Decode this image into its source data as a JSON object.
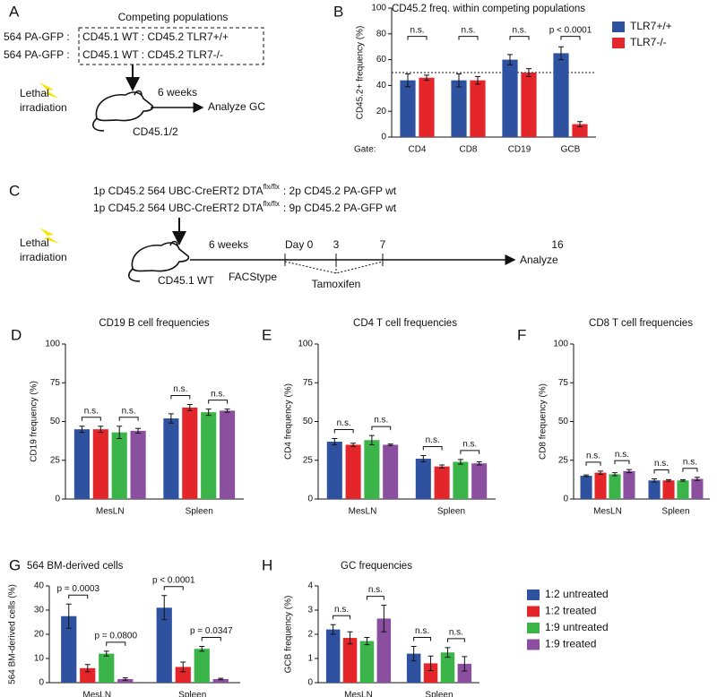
{
  "panels": {
    "A": {
      "letter": "A",
      "header": "Competing populations",
      "rows": [
        [
          "564 PA-GFP :",
          "CD45.1 WT : CD45.2 TLR7+/+"
        ],
        [
          "564 PA-GFP :",
          "CD45.1 WT : CD45.2 TLR7-/-"
        ]
      ],
      "treatment": [
        "Lethal",
        "irradiation"
      ],
      "interval": "6 weeks",
      "readout": "Analyze GC",
      "host": "CD45.1/2"
    },
    "C": {
      "letter": "C",
      "rows": [
        {
          "donor": "1p CD45.2 564 UBC-CreERT2 DTA",
          "superscript": "flx/flx",
          "mix": ": 2p CD45.2 PA-GFP wt"
        },
        {
          "donor": "1p CD45.2 564 UBC-CreERT2 DTA",
          "superscript": "flx/flx",
          "mix": ": 9p CD45.2 PA-GFP wt"
        }
      ],
      "treatment": [
        "Lethal",
        "irradiation"
      ],
      "host": "CD45.1 WT",
      "interval": "6 weeks",
      "timepoints": [
        "Day 0",
        "3",
        "7",
        "16"
      ],
      "readout": "Analyze",
      "screen": "FACStype",
      "drug": "Tamoxifen"
    }
  },
  "chart_data": [
    {
      "type": "bar",
      "panel_label": "B",
      "title": "CD45.2 freq. within competing populations",
      "y_label": "CD45.2+ frequency (%)",
      "x_label": "Gate:",
      "categories": [
        "CD4",
        "CD8",
        "CD19",
        "GCB"
      ],
      "series": [
        {
          "name": "TLR7+/+",
          "color": "#2f52a0",
          "values": [
            44,
            44,
            60,
            65
          ],
          "errors": [
            5,
            5,
            4,
            5
          ]
        },
        {
          "name": "TLR7-/-",
          "color": "#e4262b",
          "values": [
            46,
            44,
            50,
            10
          ],
          "errors": [
            2,
            3,
            3,
            2
          ]
        }
      ],
      "ylim": [
        0,
        100
      ],
      "yticks": [
        0,
        20,
        40,
        60,
        80,
        100
      ],
      "reference_line": 50,
      "annotations": [
        "n.s.",
        "n.s.",
        "n.s.",
        "p < 0.0001"
      ]
    },
    {
      "type": "bar",
      "panel_label": "D",
      "title": "CD19 B cell frequencies",
      "y_label": "CD19 frequency (%)",
      "categories": [
        "MesLN",
        "Spleen"
      ],
      "series": [
        {
          "name": "1:2 untreated",
          "color": "#2f52a0",
          "values": [
            45,
            52
          ],
          "errors": [
            2,
            3
          ]
        },
        {
          "name": "1:2 treated",
          "color": "#e4262b",
          "values": [
            45,
            59
          ],
          "errors": [
            2,
            2
          ]
        },
        {
          "name": "1:9 untreated",
          "color": "#3bb54a",
          "values": [
            43,
            56
          ],
          "errors": [
            4,
            2
          ]
        },
        {
          "name": "1:9 treated",
          "color": "#8b4f9f",
          "values": [
            44,
            57
          ],
          "errors": [
            1.5,
            1
          ]
        }
      ],
      "ylim": [
        0,
        100
      ],
      "yticks": [
        0,
        25,
        50,
        75,
        100
      ],
      "annotations": [
        "n.s.",
        "n.s.",
        "n.s.",
        "n.s."
      ]
    },
    {
      "type": "bar",
      "panel_label": "E",
      "title": "CD4 T cell frequencies",
      "y_label": "CD4 frequency (%)",
      "categories": [
        "MesLN",
        "Spleen"
      ],
      "series": [
        {
          "name": "1:2 untreated",
          "color": "#2f52a0",
          "values": [
            37,
            26
          ],
          "errors": [
            2,
            2
          ]
        },
        {
          "name": "1:2 treated",
          "color": "#e4262b",
          "values": [
            35,
            21
          ],
          "errors": [
            1,
            1
          ]
        },
        {
          "name": "1:9 untreated",
          "color": "#3bb54a",
          "values": [
            38,
            24
          ],
          "errors": [
            3,
            1.5
          ]
        },
        {
          "name": "1:9 treated",
          "color": "#8b4f9f",
          "values": [
            35,
            23
          ],
          "errors": [
            0.5,
            1
          ]
        }
      ],
      "ylim": [
        0,
        100
      ],
      "yticks": [
        0,
        25,
        50,
        75,
        100
      ],
      "annotations": [
        "n.s.",
        "n.s.",
        "n.s.",
        "n.s."
      ]
    },
    {
      "type": "bar",
      "panel_label": "F",
      "title": "CD8 T cell frequencies",
      "y_label": "CD8 frequency (%)",
      "categories": [
        "MesLN",
        "Spleen"
      ],
      "series": [
        {
          "name": "1:2 untreated",
          "color": "#2f52a0",
          "values": [
            15,
            12
          ],
          "errors": [
            0.5,
            1
          ]
        },
        {
          "name": "1:2 treated",
          "color": "#e4262b",
          "values": [
            17,
            12
          ],
          "errors": [
            1,
            0.5
          ]
        },
        {
          "name": "1:9 untreated",
          "color": "#3bb54a",
          "values": [
            16,
            12
          ],
          "errors": [
            1,
            0.5
          ]
        },
        {
          "name": "1:9 treated",
          "color": "#8b4f9f",
          "values": [
            18,
            13
          ],
          "errors": [
            1,
            1
          ]
        }
      ],
      "ylim": [
        0,
        100
      ],
      "yticks": [
        0,
        25,
        50,
        75,
        100
      ],
      "annotations": [
        "n.s.",
        "n.s.",
        "n.s.",
        "n.s."
      ]
    },
    {
      "type": "bar",
      "panel_label": "G",
      "title": "564 BM-derived cells",
      "y_label": "564 BM-derived cells (%)",
      "categories": [
        "MesLN",
        "Spleen"
      ],
      "series": [
        {
          "name": "1:2 untreated",
          "color": "#2f52a0",
          "values": [
            27.5,
            31
          ],
          "errors": [
            5,
            5
          ]
        },
        {
          "name": "1:2 treated",
          "color": "#e4262b",
          "values": [
            6,
            6.5
          ],
          "errors": [
            1.5,
            2
          ]
        },
        {
          "name": "1:9 untreated",
          "color": "#3bb54a",
          "values": [
            12,
            14
          ],
          "errors": [
            1,
            1
          ]
        },
        {
          "name": "1:9 treated",
          "color": "#8b4f9f",
          "values": [
            1.5,
            1.5
          ],
          "errors": [
            0.5,
            0.3
          ]
        }
      ],
      "ylim": [
        0,
        40
      ],
      "yticks": [
        0,
        10,
        20,
        30,
        40
      ],
      "annotations": [
        "p = 0.0003",
        "p = 0.0800",
        "p < 0.0001",
        "p = 0.0347"
      ]
    },
    {
      "type": "bar",
      "panel_label": "H",
      "title": "GC frequencies",
      "y_label": "GCB frequency (%)",
      "categories": [
        "MesLN",
        "Spleen"
      ],
      "series": [
        {
          "name": "1:2 untreated",
          "color": "#2f52a0",
          "values": [
            2.2,
            1.2
          ],
          "errors": [
            0.2,
            0.3
          ]
        },
        {
          "name": "1:2 treated",
          "color": "#e4262b",
          "values": [
            1.85,
            0.8
          ],
          "errors": [
            0.25,
            0.3
          ]
        },
        {
          "name": "1:9 untreated",
          "color": "#3bb54a",
          "values": [
            1.72,
            1.25
          ],
          "errors": [
            0.15,
            0.2
          ]
        },
        {
          "name": "1:9 treated",
          "color": "#8b4f9f",
          "values": [
            2.65,
            0.78
          ],
          "errors": [
            0.55,
            0.3
          ]
        }
      ],
      "ylim": [
        0,
        4
      ],
      "yticks": [
        0,
        1,
        2,
        3,
        4
      ],
      "annotations": [
        "n.s.",
        "n.s.",
        "n.s.",
        "n.s."
      ]
    }
  ]
}
